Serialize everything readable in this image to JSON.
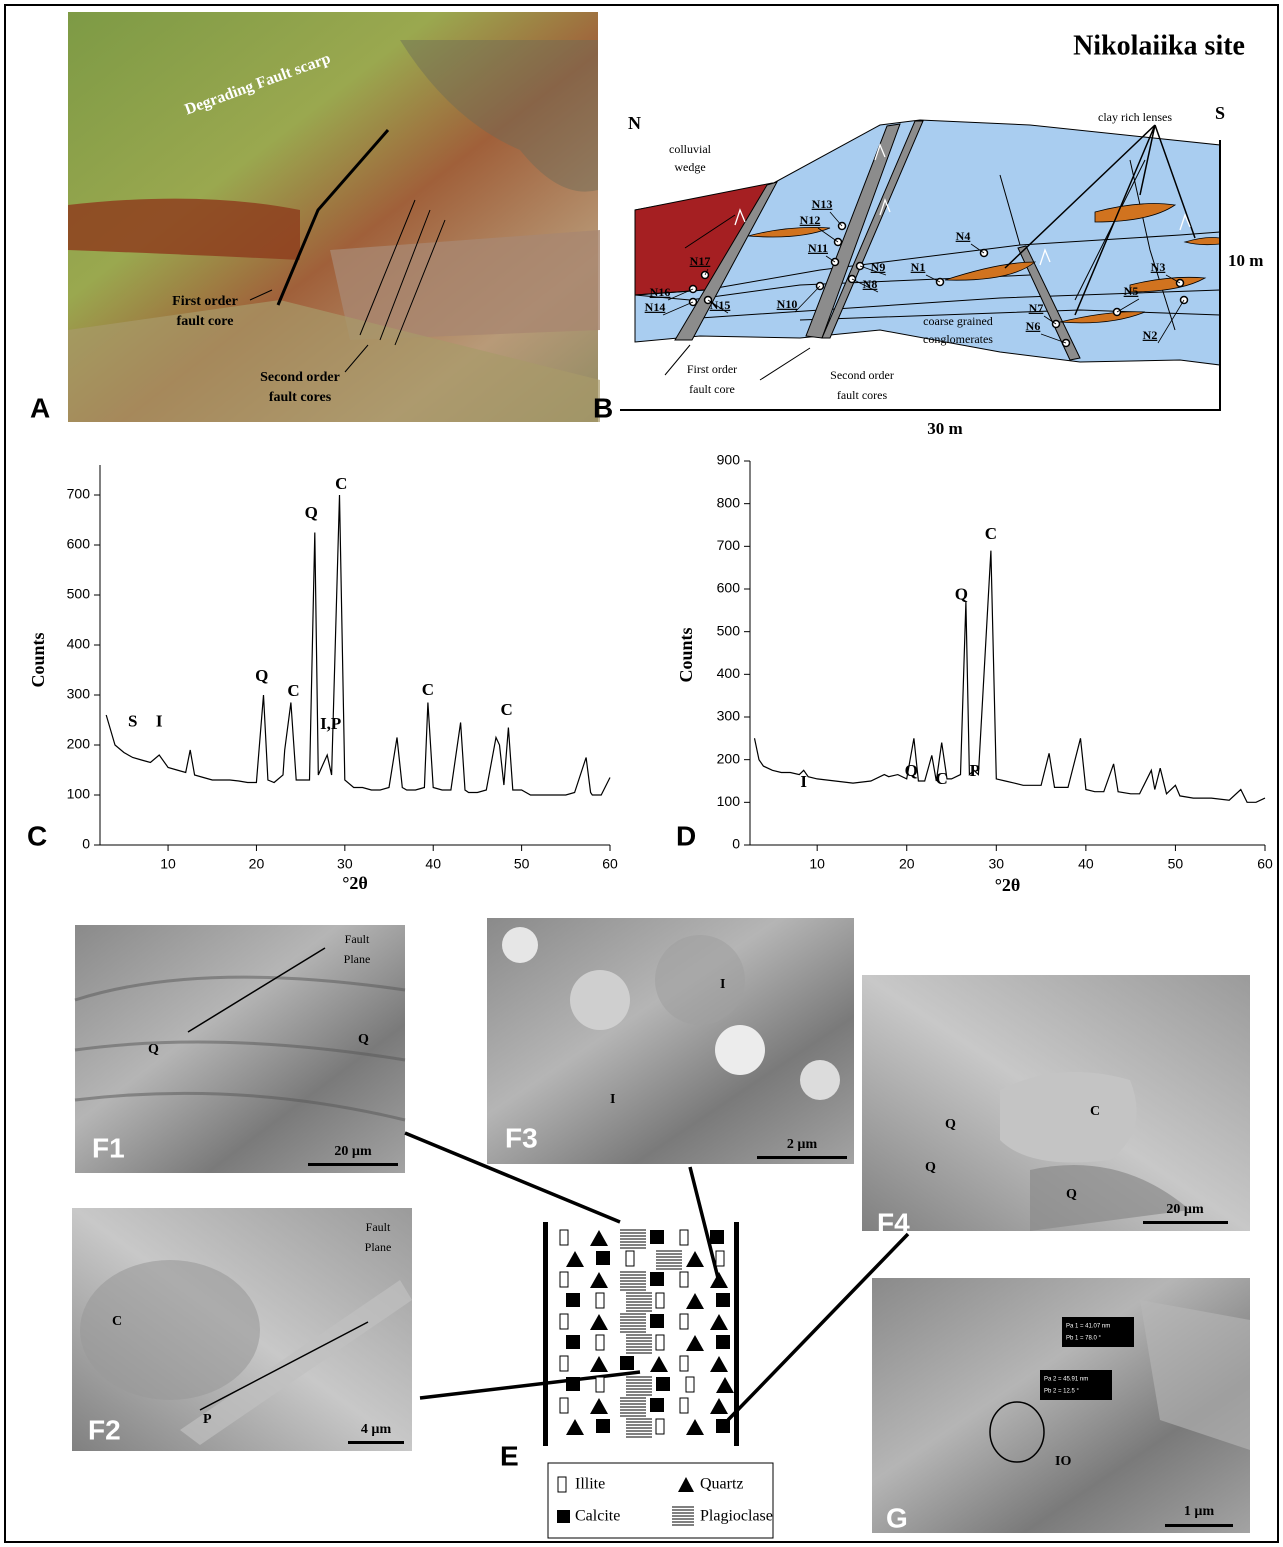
{
  "chart_data": [
    {
      "type": "line",
      "xlabel": "°2θ",
      "ylabel": "Counts",
      "color": "#000000",
      "xlim": [
        2.3,
        60
      ],
      "ylim": [
        0,
        760
      ],
      "xticks": [
        10,
        20,
        30,
        40,
        50,
        60
      ],
      "yticks": [
        0,
        100,
        200,
        300,
        400,
        500,
        600,
        700
      ],
      "x": [
        3,
        4,
        5,
        6,
        7,
        8,
        9,
        10,
        11,
        12,
        12.5,
        13,
        14,
        15,
        16,
        17,
        18,
        19,
        20,
        20.8,
        21.3,
        22,
        23,
        23.2,
        23.9,
        24.5,
        25,
        26,
        26.6,
        27,
        27.5,
        28,
        28.5,
        29.4,
        30,
        31,
        32,
        33,
        34,
        35,
        35.9,
        36.5,
        37,
        38,
        39,
        39.4,
        40,
        41,
        42,
        43.1,
        43.6,
        44,
        45,
        46,
        47.1,
        47.5,
        48,
        48.5,
        49,
        50,
        51,
        52,
        53,
        54,
        55,
        56,
        57.3,
        57.8,
        58,
        59,
        60
      ],
      "values": [
        260,
        200,
        185,
        175,
        170,
        165,
        180,
        155,
        150,
        145,
        190,
        140,
        135,
        130,
        130,
        130,
        128,
        125,
        125,
        300,
        130,
        125,
        140,
        190,
        285,
        130,
        130,
        130,
        625,
        140,
        160,
        180,
        140,
        700,
        130,
        115,
        115,
        110,
        110,
        115,
        215,
        115,
        110,
        110,
        115,
        285,
        115,
        110,
        110,
        245,
        110,
        105,
        105,
        110,
        215,
        200,
        120,
        235,
        110,
        110,
        100,
        100,
        100,
        100,
        100,
        105,
        175,
        105,
        100,
        100,
        135
      ],
      "annotations": [
        {
          "text": "S",
          "x": 6,
          "y": 245
        },
        {
          "text": "I",
          "x": 9,
          "y": 245
        },
        {
          "text": "Q",
          "x": 20.6,
          "y": 336
        },
        {
          "text": "C",
          "x": 24.2,
          "y": 306
        },
        {
          "text": "Q",
          "x": 26.2,
          "y": 662
        },
        {
          "text": "C",
          "x": 29.6,
          "y": 720
        },
        {
          "text": "I,P",
          "x": 28.4,
          "y": 240
        },
        {
          "text": "C",
          "x": 39.4,
          "y": 308
        },
        {
          "text": "C",
          "x": 48.3,
          "y": 268
        }
      ]
    },
    {
      "type": "line",
      "xlabel": "°2θ",
      "ylabel": "Counts",
      "color": "#000000",
      "xlim": [
        2.5,
        60
      ],
      "ylim": [
        0,
        900
      ],
      "xticks": [
        10,
        20,
        30,
        40,
        50,
        60
      ],
      "yticks": [
        0,
        100,
        200,
        300,
        400,
        500,
        600,
        700,
        800,
        900
      ],
      "x": [
        3,
        3.5,
        4,
        5,
        6,
        7,
        8,
        8.5,
        9,
        10,
        12,
        14,
        16,
        17.5,
        18,
        19,
        20,
        20.8,
        21.3,
        22,
        22.8,
        23.3,
        23.9,
        24.5,
        25,
        26,
        26.6,
        27,
        27.5,
        28,
        29.4,
        30,
        31,
        32,
        33,
        34,
        35,
        35.9,
        36.5,
        38,
        39.4,
        40,
        41,
        42,
        43.1,
        43.6,
        45,
        46,
        47.3,
        47.7,
        48.3,
        49,
        50,
        50.5,
        52,
        54,
        56,
        57.3,
        58,
        59,
        60
      ],
      "values": [
        250,
        200,
        185,
        175,
        170,
        170,
        165,
        175,
        160,
        155,
        150,
        145,
        150,
        165,
        160,
        165,
        155,
        250,
        150,
        150,
        210,
        150,
        240,
        155,
        155,
        165,
        570,
        165,
        175,
        165,
        690,
        155,
        150,
        145,
        140,
        140,
        140,
        215,
        135,
        135,
        250,
        130,
        125,
        125,
        190,
        125,
        120,
        120,
        175,
        130,
        180,
        120,
        140,
        115,
        110,
        110,
        105,
        130,
        100,
        100,
        110
      ],
      "annotations": [
        {
          "text": "I",
          "x": 8.5,
          "y": 145
        },
        {
          "text": "Q",
          "x": 20.5,
          "y": 171
        },
        {
          "text": "C",
          "x": 23.9,
          "y": 152
        },
        {
          "text": "P",
          "x": 27.6,
          "y": 171
        },
        {
          "text": "Q",
          "x": 26.1,
          "y": 585
        },
        {
          "text": "C",
          "x": 29.4,
          "y": 726
        }
      ]
    }
  ],
  "panel_labels": [
    "A",
    "B",
    "C",
    "D",
    "E",
    "F1",
    "F2",
    "F3",
    "F4",
    "G"
  ],
  "panel_a": {
    "labels": [
      "Degrading Fault scarp"
    ],
    "first_core": [
      "First order",
      "fault core"
    ],
    "second_cores": [
      "Second order",
      "fault cores"
    ]
  },
  "panel_b": {
    "title": "Nikolaiika site",
    "north": "N",
    "south": "S",
    "height": "10 m",
    "width": "30 m",
    "colluvial": [
      "colluvial",
      "wedge"
    ],
    "clay": "clay rich lenses",
    "conglomerates": [
      "coarse grained",
      "conglomerates"
    ],
    "first_core": [
      "First order",
      "fault core"
    ],
    "second_cores": [
      "Second order",
      "fault cores"
    ],
    "samples": [
      "N1",
      "N2",
      "N3",
      "N4",
      "N5",
      "N6",
      "N7",
      "N8",
      "N9",
      "N10",
      "N11",
      "N12",
      "N13",
      "N14",
      "N15",
      "N16",
      "N17"
    ]
  },
  "panel_e": {
    "legend": [
      "Illite",
      "Quartz",
      "Calcite",
      "Plagioclase"
    ]
  },
  "panel_f1": {
    "fault_plane": [
      "Fault",
      "Plane"
    ],
    "minerals": [
      "Q",
      "Q"
    ],
    "scale": "20 µm"
  },
  "panel_f2": {
    "fault_plane": [
      "Fault",
      "Plane"
    ],
    "minerals": [
      "C",
      "P"
    ],
    "scale": "4 µm"
  },
  "panel_f3": {
    "minerals": [
      "I",
      "I"
    ],
    "scale": "2 µm"
  },
  "panel_f4": {
    "minerals": [
      "Q",
      "Q",
      "C",
      "Q"
    ],
    "scale": "20 µm"
  },
  "panel_g": {
    "measurements": [
      "Pa 1 = 41.07 nm",
      "Pb 1 = 78.0 °",
      "Pa 2 = 45.91 nm",
      "Pb 2 = 12.5 °"
    ],
    "minerals": [
      "IO"
    ],
    "scale": "1 µm"
  }
}
